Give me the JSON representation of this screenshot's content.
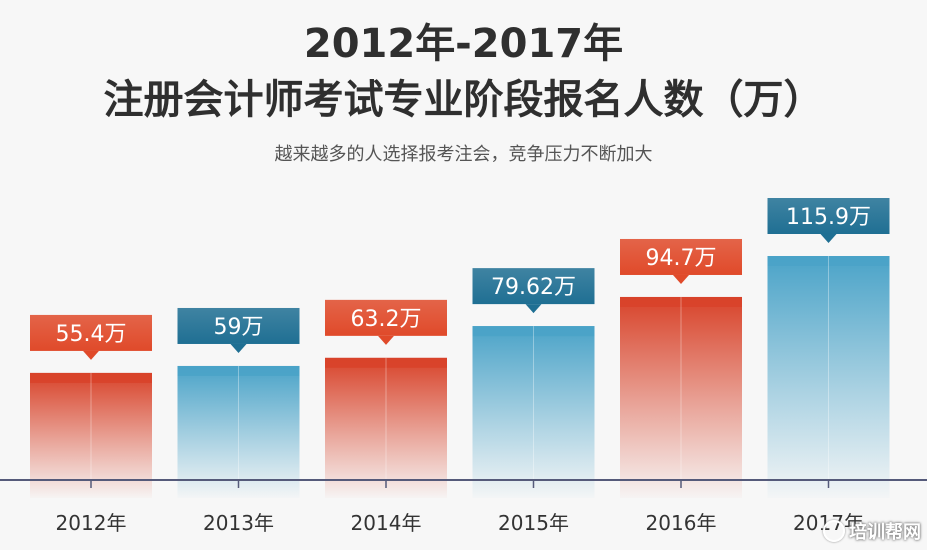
{
  "header": {
    "title_line1": "2012年-2017年",
    "title_line2": "注册会计师考试专业阶段报名人数（万）",
    "subtitle": "越来越多的人选择报考注会，竞争压力不断加大"
  },
  "watermark": "培训帮网",
  "colors": {
    "red_label": "#e04a2a",
    "red_bar_top": "#d8432a",
    "blue_label": "#1f6f93",
    "blue_bar_top": "#4aa3c8",
    "axis": "#555a7a"
  },
  "chart_data": {
    "type": "bar",
    "categories": [
      "2012年",
      "2013年",
      "2014年",
      "2015年",
      "2016年",
      "2017年"
    ],
    "values": [
      55.4,
      59,
      63.2,
      79.62,
      94.7,
      115.9
    ],
    "labels": [
      "55.4万",
      "59万",
      "63.2万",
      "79.62万",
      "94.7万",
      "115.9万"
    ],
    "bar_colors": [
      "red",
      "blue",
      "red",
      "blue",
      "red",
      "blue"
    ],
    "title": "2012年-2017年 注册会计师考试专业阶段报名人数（万）",
    "unit": "万",
    "grid": false
  }
}
